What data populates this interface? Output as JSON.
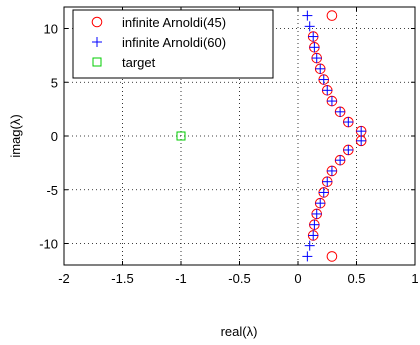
{
  "chart_data": {
    "type": "scatter",
    "title": "",
    "xlabel": "real(λ)",
    "ylabel": "imag(λ)",
    "xlim": [
      -2,
      1
    ],
    "ylim": [
      -12,
      12
    ],
    "xticks": [
      "-2",
      "-1.5",
      "-1",
      "-0.5",
      "0",
      "0.5",
      "1"
    ],
    "xtick_values": [
      -2,
      -1.5,
      -1,
      -0.5,
      0,
      0.5,
      1
    ],
    "yticks": [
      "-10",
      "-5",
      "0",
      "5",
      "10"
    ],
    "ytick_values": [
      -10,
      -5,
      0,
      5,
      10
    ],
    "grid": true,
    "legend_position": "top-left",
    "series": [
      {
        "name": "infinite Arnoldi(45)",
        "marker": "circle",
        "color": "#ff0000",
        "points": [
          [
            0.29,
            11.2
          ],
          [
            0.13,
            9.25
          ],
          [
            0.14,
            8.25
          ],
          [
            0.16,
            7.25
          ],
          [
            0.19,
            6.25
          ],
          [
            0.22,
            5.25
          ],
          [
            0.25,
            4.25
          ],
          [
            0.29,
            3.25
          ],
          [
            0.36,
            2.25
          ],
          [
            0.43,
            1.3
          ],
          [
            0.54,
            0.45
          ],
          [
            0.54,
            -0.45
          ],
          [
            0.43,
            -1.3
          ],
          [
            0.36,
            -2.25
          ],
          [
            0.29,
            -3.25
          ],
          [
            0.25,
            -4.25
          ],
          [
            0.22,
            -5.25
          ],
          [
            0.19,
            -6.25
          ],
          [
            0.16,
            -7.25
          ],
          [
            0.14,
            -8.25
          ],
          [
            0.13,
            -9.25
          ],
          [
            0.29,
            -11.2
          ]
        ]
      },
      {
        "name": "infinite Arnoldi(60)",
        "marker": "plus",
        "color": "#0000ff",
        "points": [
          [
            0.08,
            11.2
          ],
          [
            0.1,
            10.2
          ],
          [
            0.13,
            9.25
          ],
          [
            0.14,
            8.25
          ],
          [
            0.16,
            7.25
          ],
          [
            0.19,
            6.25
          ],
          [
            0.22,
            5.25
          ],
          [
            0.25,
            4.25
          ],
          [
            0.29,
            3.25
          ],
          [
            0.36,
            2.25
          ],
          [
            0.43,
            1.3
          ],
          [
            0.54,
            0.45
          ],
          [
            0.54,
            -0.45
          ],
          [
            0.43,
            -1.3
          ],
          [
            0.36,
            -2.25
          ],
          [
            0.29,
            -3.25
          ],
          [
            0.25,
            -4.25
          ],
          [
            0.22,
            -5.25
          ],
          [
            0.19,
            -6.25
          ],
          [
            0.16,
            -7.25
          ],
          [
            0.14,
            -8.25
          ],
          [
            0.13,
            -9.25
          ],
          [
            0.1,
            -10.2
          ],
          [
            0.08,
            -11.2
          ]
        ]
      },
      {
        "name": "target",
        "marker": "square",
        "color": "#00cc00",
        "points": [
          [
            -1,
            0
          ]
        ]
      }
    ]
  }
}
